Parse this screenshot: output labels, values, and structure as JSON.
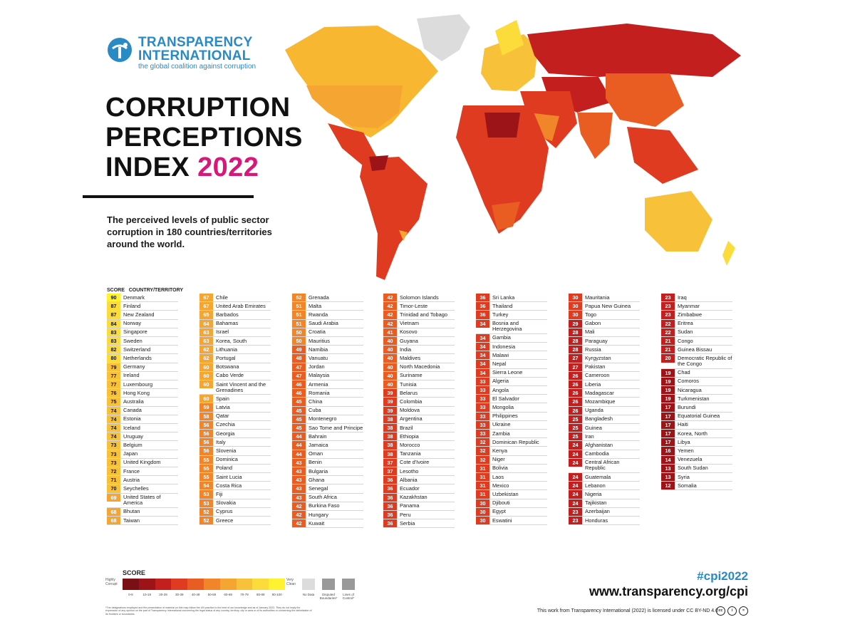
{
  "logo": {
    "line1": "TRANSPARENCY",
    "line2": "INTERNATIONAL",
    "tagline": "the global coalition against corruption"
  },
  "title": {
    "line1": "CORRUPTION",
    "line2": "PERCEPTIONS",
    "line3": "INDEX",
    "year": "2022"
  },
  "subtitle": "The perceived levels of public sector corruption in 180 countries/territories around the world.",
  "column_header": "SCORE   COUNTRY/TERRITORY",
  "colors": {
    "0-9": "#7a0f15",
    "10-19": "#9c1418",
    "20-29": "#c41f1f",
    "30-39": "#de3b21",
    "40-49": "#ea5d22",
    "50-59": "#f0852a",
    "60-69": "#f5a632",
    "70-79": "#f8c13a",
    "80-89": "#fcdc3a",
    "90-100": "#fff22e",
    "no_data": "#dcdcdc"
  },
  "columns": [
    [
      {
        "s": "90",
        "n": "Denmark"
      },
      {
        "s": "87",
        "n": "Finland"
      },
      {
        "s": "87",
        "n": "New Zealand"
      },
      {
        "s": "84",
        "n": "Norway"
      },
      {
        "s": "83",
        "n": "Singapore"
      },
      {
        "s": "83",
        "n": "Sweden"
      },
      {
        "s": "82",
        "n": "Switzerland"
      },
      {
        "s": "80",
        "n": "Netherlands"
      },
      {
        "s": "79",
        "n": "Germany"
      },
      {
        "s": "77",
        "n": "Ireland"
      },
      {
        "s": "77",
        "n": "Luxembourg"
      },
      {
        "s": "76",
        "n": "Hong Kong"
      },
      {
        "s": "75",
        "n": "Australia"
      },
      {
        "s": "74",
        "n": "Canada"
      },
      {
        "s": "74",
        "n": "Estonia"
      },
      {
        "s": "74",
        "n": "Iceland"
      },
      {
        "s": "74",
        "n": "Uruguay"
      },
      {
        "s": "73",
        "n": "Belgium"
      },
      {
        "s": "73",
        "n": "Japan"
      },
      {
        "s": "73",
        "n": "United Kingdom"
      },
      {
        "s": "72",
        "n": "France"
      },
      {
        "s": "71",
        "n": "Austria"
      },
      {
        "s": "70",
        "n": "Seychelles"
      },
      {
        "s": "69",
        "n": "United States of America"
      },
      {
        "s": "68",
        "n": "Bhutan"
      },
      {
        "s": "68",
        "n": "Taiwan"
      }
    ],
    [
      {
        "s": "67",
        "n": "Chile"
      },
      {
        "s": "67",
        "n": "United Arab Emirates"
      },
      {
        "s": "65",
        "n": "Barbados"
      },
      {
        "s": "64",
        "n": "Bahamas"
      },
      {
        "s": "63",
        "n": "Israel"
      },
      {
        "s": "63",
        "n": "Korea, South"
      },
      {
        "s": "62",
        "n": "Lithuania"
      },
      {
        "s": "62",
        "n": "Portugal"
      },
      {
        "s": "60",
        "n": "Botswana"
      },
      {
        "s": "60",
        "n": "Cabo Verde"
      },
      {
        "s": "60",
        "n": "Saint Vincent and the Grenadines"
      },
      {
        "s": "60",
        "n": "Spain"
      },
      {
        "s": "59",
        "n": "Latvia"
      },
      {
        "s": "58",
        "n": "Qatar"
      },
      {
        "s": "56",
        "n": "Czechia"
      },
      {
        "s": "56",
        "n": "Georgia"
      },
      {
        "s": "56",
        "n": "Italy"
      },
      {
        "s": "56",
        "n": "Slovenia"
      },
      {
        "s": "55",
        "n": "Dominica"
      },
      {
        "s": "55",
        "n": "Poland"
      },
      {
        "s": "55",
        "n": "Saint Lucia"
      },
      {
        "s": "54",
        "n": "Costa Rica"
      },
      {
        "s": "53",
        "n": "Fiji"
      },
      {
        "s": "53",
        "n": "Slovakia"
      },
      {
        "s": "52",
        "n": "Cyprus"
      },
      {
        "s": "52",
        "n": "Greece"
      }
    ],
    [
      {
        "s": "52",
        "n": "Grenada"
      },
      {
        "s": "51",
        "n": "Malta"
      },
      {
        "s": "51",
        "n": "Rwanda"
      },
      {
        "s": "51",
        "n": "Saudi Arabia"
      },
      {
        "s": "50",
        "n": "Croatia"
      },
      {
        "s": "50",
        "n": "Mauritius"
      },
      {
        "s": "49",
        "n": "Namibia"
      },
      {
        "s": "48",
        "n": "Vanuatu"
      },
      {
        "s": "47",
        "n": "Jordan"
      },
      {
        "s": "47",
        "n": "Malaysia"
      },
      {
        "s": "46",
        "n": "Armenia"
      },
      {
        "s": "46",
        "n": "Romania"
      },
      {
        "s": "45",
        "n": "China"
      },
      {
        "s": "45",
        "n": "Cuba"
      },
      {
        "s": "45",
        "n": "Montenegro"
      },
      {
        "s": "45",
        "n": "Sao Tome and Principe"
      },
      {
        "s": "44",
        "n": "Bahrain"
      },
      {
        "s": "44",
        "n": "Jamaica"
      },
      {
        "s": "44",
        "n": "Oman"
      },
      {
        "s": "43",
        "n": "Benin"
      },
      {
        "s": "43",
        "n": "Bulgaria"
      },
      {
        "s": "43",
        "n": "Ghana"
      },
      {
        "s": "43",
        "n": "Senegal"
      },
      {
        "s": "43",
        "n": "South Africa"
      },
      {
        "s": "42",
        "n": "Burkina Faso"
      },
      {
        "s": "42",
        "n": "Hungary"
      },
      {
        "s": "42",
        "n": "Kuwait"
      }
    ],
    [
      {
        "s": "42",
        "n": "Solomon Islands"
      },
      {
        "s": "42",
        "n": "Timor-Leste"
      },
      {
        "s": "42",
        "n": "Trinidad and Tobago"
      },
      {
        "s": "42",
        "n": "Vietnam"
      },
      {
        "s": "41",
        "n": "Kosovo"
      },
      {
        "s": "40",
        "n": "Guyana"
      },
      {
        "s": "40",
        "n": "India"
      },
      {
        "s": "40",
        "n": "Maldives"
      },
      {
        "s": "40",
        "n": "North Macedonia"
      },
      {
        "s": "40",
        "n": "Suriname"
      },
      {
        "s": "40",
        "n": "Tunisia"
      },
      {
        "s": "39",
        "n": "Belarus"
      },
      {
        "s": "39",
        "n": "Colombia"
      },
      {
        "s": "39",
        "n": "Moldova"
      },
      {
        "s": "38",
        "n": "Argentina"
      },
      {
        "s": "38",
        "n": "Brazil"
      },
      {
        "s": "38",
        "n": "Ethiopia"
      },
      {
        "s": "38",
        "n": "Morocco"
      },
      {
        "s": "38",
        "n": "Tanzania"
      },
      {
        "s": "37",
        "n": "Cote d'Ivoire"
      },
      {
        "s": "37",
        "n": "Lesotho"
      },
      {
        "s": "36",
        "n": "Albania"
      },
      {
        "s": "36",
        "n": "Ecuador"
      },
      {
        "s": "36",
        "n": "Kazakhstan"
      },
      {
        "s": "36",
        "n": "Panama"
      },
      {
        "s": "36",
        "n": "Peru"
      },
      {
        "s": "36",
        "n": "Serbia"
      }
    ],
    [
      {
        "s": "36",
        "n": "Sri Lanka"
      },
      {
        "s": "36",
        "n": "Thailand"
      },
      {
        "s": "36",
        "n": "Turkey"
      },
      {
        "s": "34",
        "n": "Bosnia and Herzegovina"
      },
      {
        "s": "34",
        "n": "Gambia"
      },
      {
        "s": "34",
        "n": "Indonesia"
      },
      {
        "s": "34",
        "n": "Malawi"
      },
      {
        "s": "34",
        "n": "Nepal"
      },
      {
        "s": "34",
        "n": "Sierra Leone"
      },
      {
        "s": "33",
        "n": "Algeria"
      },
      {
        "s": "33",
        "n": "Angola"
      },
      {
        "s": "33",
        "n": "El Salvador"
      },
      {
        "s": "33",
        "n": "Mongolia"
      },
      {
        "s": "33",
        "n": "Philippines"
      },
      {
        "s": "33",
        "n": "Ukraine"
      },
      {
        "s": "33",
        "n": "Zambia"
      },
      {
        "s": "32",
        "n": "Dominican Republic"
      },
      {
        "s": "32",
        "n": "Kenya"
      },
      {
        "s": "32",
        "n": "Niger"
      },
      {
        "s": "31",
        "n": "Bolivia"
      },
      {
        "s": "31",
        "n": "Laos"
      },
      {
        "s": "31",
        "n": "Mexico"
      },
      {
        "s": "31",
        "n": "Uzbekistan"
      },
      {
        "s": "30",
        "n": "Djibouti"
      },
      {
        "s": "30",
        "n": "Egypt"
      },
      {
        "s": "30",
        "n": "Eswatini"
      }
    ],
    [
      {
        "s": "30",
        "n": "Mauritania"
      },
      {
        "s": "30",
        "n": "Papua New Guinea"
      },
      {
        "s": "30",
        "n": "Togo"
      },
      {
        "s": "29",
        "n": "Gabon"
      },
      {
        "s": "28",
        "n": "Mali"
      },
      {
        "s": "28",
        "n": "Paraguay"
      },
      {
        "s": "28",
        "n": "Russia"
      },
      {
        "s": "27",
        "n": "Kyrgyzstan"
      },
      {
        "s": "27",
        "n": "Pakistan"
      },
      {
        "s": "26",
        "n": "Cameroon"
      },
      {
        "s": "26",
        "n": "Liberia"
      },
      {
        "s": "26",
        "n": "Madagascar"
      },
      {
        "s": "26",
        "n": "Mozambique"
      },
      {
        "s": "26",
        "n": "Uganda"
      },
      {
        "s": "25",
        "n": "Bangladesh"
      },
      {
        "s": "25",
        "n": "Guinea"
      },
      {
        "s": "25",
        "n": "Iran"
      },
      {
        "s": "24",
        "n": "Afghanistan"
      },
      {
        "s": "24",
        "n": "Cambodia"
      },
      {
        "s": "24",
        "n": "Central African Republic"
      },
      {
        "s": "24",
        "n": "Guatemala"
      },
      {
        "s": "24",
        "n": "Lebanon"
      },
      {
        "s": "24",
        "n": "Nigeria"
      },
      {
        "s": "24",
        "n": "Tajikistan"
      },
      {
        "s": "23",
        "n": "Azerbaijan"
      },
      {
        "s": "23",
        "n": "Honduras"
      }
    ],
    [
      {
        "s": "23",
        "n": "Iraq"
      },
      {
        "s": "23",
        "n": "Myanmar"
      },
      {
        "s": "23",
        "n": "Zimbabwe"
      },
      {
        "s": "22",
        "n": "Eritrea"
      },
      {
        "s": "22",
        "n": "Sudan"
      },
      {
        "s": "21",
        "n": "Congo"
      },
      {
        "s": "21",
        "n": "Guinea Bissau"
      },
      {
        "s": "20",
        "n": "Democratic Republic of the Congo"
      },
      {
        "s": "19",
        "n": "Chad"
      },
      {
        "s": "19",
        "n": "Comoros"
      },
      {
        "s": "19",
        "n": "Nicaragua"
      },
      {
        "s": "19",
        "n": "Turkmenistan"
      },
      {
        "s": "17",
        "n": "Burundi"
      },
      {
        "s": "17",
        "n": "Equatorial Guinea"
      },
      {
        "s": "17",
        "n": "Haiti"
      },
      {
        "s": "17",
        "n": "Korea, North"
      },
      {
        "s": "17",
        "n": "Libya"
      },
      {
        "s": "16",
        "n": "Yemen"
      },
      {
        "s": "14",
        "n": "Venezuela"
      },
      {
        "s": "13",
        "n": "South Sudan"
      },
      {
        "s": "13",
        "n": "Syria"
      },
      {
        "s": "12",
        "n": "Somalia"
      }
    ]
  ],
  "legend": {
    "title": "SCORE",
    "low_label": "Highly Corrupt",
    "high_label": "Very Clean",
    "ranges": [
      "0-9",
      "10-19",
      "20-29",
      "30-39",
      "40-49",
      "50-59",
      "60-69",
      "70-79",
      "80-89",
      "90-100"
    ],
    "no_data": "No Data",
    "disputed": "Disputed Boundaries*",
    "lines_of_control": "Lines of Control*",
    "note": "*The designations employed and the presentation of material on this map follow the UN practice to the best of our knowledge and as of January 2023. They do not imply the expression of any opinion on the part of Transparency International concerning the legal status of any country, territory, city or area or of its authorities or concerning the delimitation of its frontiers or boundaries."
  },
  "footer": {
    "hashtag": "#cpi2022",
    "url": "www.transparency.org/cpi",
    "license": "This work from Transparency International (2022) is licensed under CC BY-ND 4.0"
  }
}
